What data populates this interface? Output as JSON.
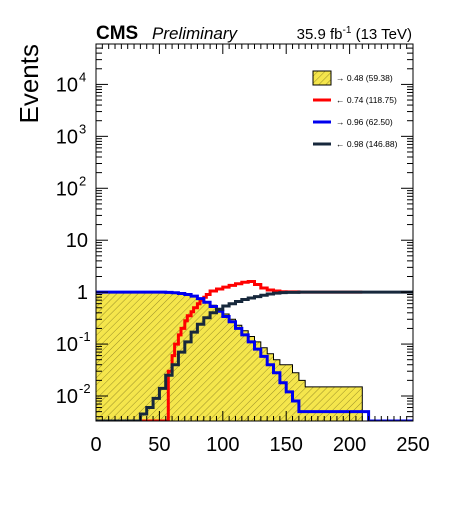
{
  "header": {
    "experiment": "CMS",
    "status": "Preliminary",
    "lumi_value": "35.9 fb",
    "lumi_exp": "-1",
    "energy": " (13 TeV)"
  },
  "axes": {
    "ylabel": "Events",
    "x_tick_labels": [
      "0",
      "50",
      "100",
      "150",
      "200",
      "250"
    ],
    "y_tick_labels": [
      {
        "base": "10",
        "exp": "-2",
        "value": 0.01
      },
      {
        "base": "10",
        "exp": "-1",
        "value": 0.1
      },
      {
        "base": "1",
        "exp": "",
        "value": 1
      },
      {
        "base": "10",
        "exp": "",
        "value": 10
      },
      {
        "base": "10",
        "exp": "2",
        "value": 100
      },
      {
        "base": "10",
        "exp": "3",
        "value": 1000
      },
      {
        "base": "10",
        "exp": "4",
        "value": 10000
      }
    ]
  },
  "legend": [
    {
      "label": "→ 0.48 (59.38)"
    },
    {
      "label": "← 0.74 (118.75)"
    },
    {
      "label": "→ 0.96 (62.50)"
    },
    {
      "label": "← 0.98 (146.88)"
    }
  ],
  "colors": {
    "fill": "#f5e64c",
    "fill_hatch": "#9a8f28",
    "red": "#ff0000",
    "blue": "#0000ee",
    "navy": "#17283c"
  },
  "chart_data": {
    "type": "line",
    "title": "",
    "xlabel": "",
    "ylabel": "Events",
    "xlim": [
      0,
      250
    ],
    "ylim": [
      0.0033,
      60000
    ],
    "yscale": "log",
    "grid": false,
    "legend_position": "top-right",
    "series": [
      {
        "name": "→ 0.48 (59.38)",
        "style": "filled-step",
        "x": [
          0,
          5,
          10,
          15,
          20,
          25,
          30,
          35,
          40,
          45,
          50,
          55,
          60,
          65,
          70,
          75,
          80,
          85,
          90,
          95,
          100,
          105,
          110,
          115,
          120,
          125,
          130,
          135,
          140,
          145,
          150,
          155,
          160,
          165,
          170,
          175,
          180,
          185,
          190,
          195,
          200,
          205
        ],
        "y": [
          1.0,
          1.0,
          1.0,
          1.0,
          1.0,
          1.0,
          1.0,
          1.0,
          1.0,
          1.0,
          1.0,
          0.99,
          0.97,
          0.94,
          0.9,
          0.84,
          0.76,
          0.66,
          0.56,
          0.47,
          0.38,
          0.3,
          0.23,
          0.18,
          0.14,
          0.11,
          0.085,
          0.065,
          0.05,
          0.04,
          0.04,
          0.028,
          0.02,
          0.015,
          0.015,
          0.015,
          0.015,
          0.015,
          0.015,
          0.015,
          0.015,
          0.015
        ]
      },
      {
        "name": "← 0.74 (118.75)",
        "style": "step",
        "x": [
          0,
          5,
          10,
          15,
          20,
          25,
          30,
          35,
          40,
          45,
          50,
          55,
          57,
          60,
          62,
          65,
          67,
          70,
          72,
          75,
          77,
          80,
          82,
          85,
          87,
          90,
          95,
          100,
          105,
          110,
          115,
          120,
          125,
          130,
          135,
          140,
          145,
          150,
          160,
          170,
          180,
          190,
          200,
          205
        ],
        "y": [
          0.0033,
          0.0033,
          0.0033,
          0.0033,
          0.0033,
          0.0033,
          0.0033,
          0.0033,
          0.0033,
          0.0033,
          0.0033,
          0.0033,
          0.03,
          0.06,
          0.1,
          0.15,
          0.2,
          0.28,
          0.35,
          0.42,
          0.5,
          0.6,
          0.7,
          0.8,
          0.9,
          1.05,
          1.15,
          1.25,
          1.35,
          1.45,
          1.55,
          1.6,
          1.4,
          1.2,
          1.1,
          1.05,
          1.02,
          1.01,
          1.0,
          1.0,
          1.0,
          1.0,
          1.0,
          1.0
        ]
      },
      {
        "name": "→ 0.96 (62.50)",
        "style": "step",
        "x": [
          0,
          10,
          20,
          30,
          40,
          50,
          55,
          60,
          65,
          70,
          75,
          80,
          85,
          90,
          95,
          100,
          105,
          110,
          115,
          120,
          125,
          130,
          135,
          140,
          145,
          150,
          155,
          160,
          170,
          180,
          190,
          200,
          210,
          215,
          220,
          230,
          240,
          250
        ],
        "y": [
          1.0,
          1.0,
          1.0,
          1.0,
          1.0,
          1.0,
          0.99,
          0.97,
          0.94,
          0.9,
          0.84,
          0.75,
          0.64,
          0.53,
          0.43,
          0.34,
          0.27,
          0.2,
          0.15,
          0.11,
          0.08,
          0.058,
          0.04,
          0.028,
          0.018,
          0.012,
          0.008,
          0.005,
          0.005,
          0.005,
          0.005,
          0.005,
          0.005,
          0.0033,
          0.0033,
          0.0033,
          0.0033,
          0.0033
        ]
      },
      {
        "name": "← 0.98 (146.88)",
        "style": "step",
        "x": [
          0,
          10,
          20,
          30,
          35,
          40,
          45,
          50,
          55,
          60,
          65,
          70,
          75,
          80,
          85,
          90,
          95,
          100,
          105,
          110,
          115,
          120,
          125,
          130,
          135,
          140,
          145,
          150,
          160,
          180,
          200,
          220,
          240,
          250
        ],
        "y": [
          0.0033,
          0.0033,
          0.0033,
          0.0033,
          0.0045,
          0.006,
          0.009,
          0.014,
          0.025,
          0.04,
          0.07,
          0.11,
          0.17,
          0.24,
          0.32,
          0.4,
          0.47,
          0.54,
          0.6,
          0.66,
          0.72,
          0.77,
          0.82,
          0.87,
          0.92,
          0.96,
          0.98,
          0.99,
          1.0,
          1.0,
          1.0,
          1.0,
          1.0,
          1.0
        ]
      }
    ]
  }
}
